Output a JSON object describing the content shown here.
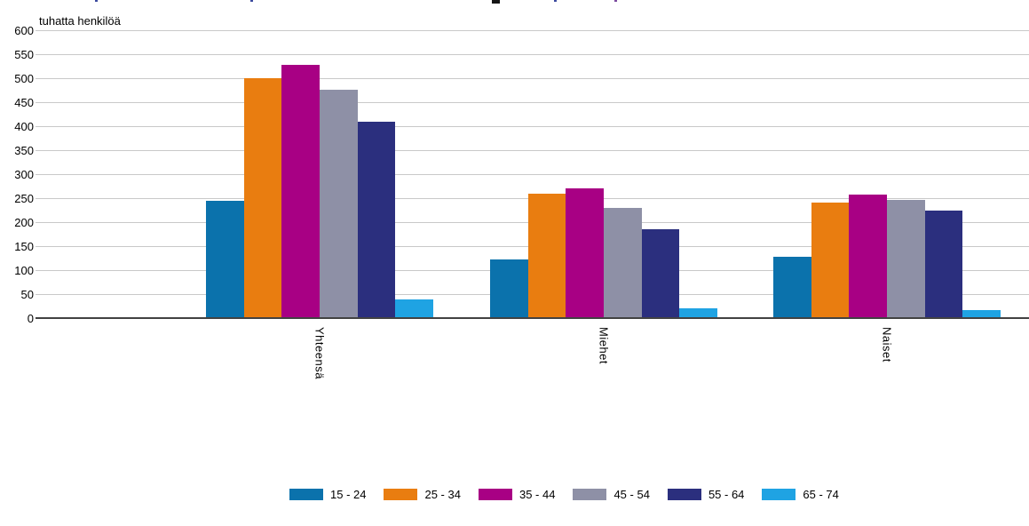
{
  "chart_data": {
    "type": "bar",
    "unit_label": "tuhatta henkilöä",
    "categories": [
      "Yhteensä",
      "Miehet",
      "Naiset"
    ],
    "series": [
      {
        "name": "15 - 24",
        "color": "#0b72ac",
        "values": [
          245,
          122,
          127
        ]
      },
      {
        "name": "25 - 34",
        "color": "#e97d10",
        "values": [
          500,
          260,
          241
        ]
      },
      {
        "name": "35 - 44",
        "color": "#a80084",
        "values": [
          527,
          270,
          257
        ]
      },
      {
        "name": "45 - 54",
        "color": "#8e90a6",
        "values": [
          476,
          230,
          246
        ]
      },
      {
        "name": "55 - 64",
        "color": "#2b2f7e",
        "values": [
          410,
          185,
          224
        ]
      },
      {
        "name": "65 - 74",
        "color": "#1fa3e3",
        "values": [
          38,
          21,
          17
        ]
      }
    ],
    "ylim": [
      0,
      600
    ],
    "ytick_step": 50,
    "grid": true,
    "legend_position": "bottom",
    "colors": {
      "gridline": "#c9c9c9",
      "axis_line": "#424242",
      "text": "#000000"
    }
  }
}
